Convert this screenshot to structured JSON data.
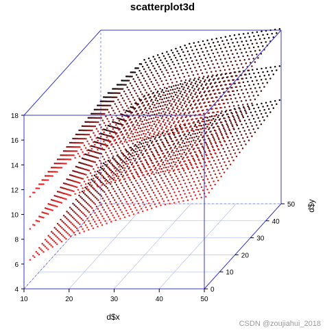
{
  "chart_data": {
    "type": "scatter",
    "title": "scatterplot3d",
    "xlabel": "d$x",
    "ylabel": "d$y",
    "zlabel": "",
    "xlim": [
      10,
      50
    ],
    "ylim": [
      0,
      50
    ],
    "zlim": [
      4,
      18
    ],
    "x_ticks": [
      "10",
      "20",
      "30",
      "40",
      "50"
    ],
    "y_ticks": [
      "0",
      "10",
      "20",
      "30",
      "40",
      "50"
    ],
    "z_ticks": [
      "4",
      "6",
      "8",
      "10",
      "12",
      "14",
      "16",
      "18"
    ],
    "grid": true,
    "box": true,
    "point_color_gradient": [
      "#ff0000",
      "#000000"
    ],
    "box_color": "#3333cc",
    "grid_color": "#aab8ee",
    "surfaces": [
      {
        "x_range": [
          11,
          50
        ],
        "y_range": [
          1,
          50
        ],
        "z_at_x": [
          [
            11,
            6.2
          ],
          [
            20,
            8.1
          ],
          [
            30,
            9.4
          ],
          [
            40,
            10.6
          ],
          [
            50,
            11.3
          ]
        ],
        "z_slope_y": 0.025
      },
      {
        "x_range": [
          11,
          50
        ],
        "y_range": [
          1,
          50
        ],
        "z_at_x": [
          [
            11,
            8.7
          ],
          [
            20,
            11.4
          ],
          [
            30,
            12.6
          ],
          [
            40,
            13.3
          ],
          [
            50,
            13.8
          ]
        ],
        "z_slope_y": 0.03
      },
      {
        "x_range": [
          11,
          50
        ],
        "y_range": [
          1,
          50
        ],
        "z_at_x": [
          [
            11,
            11.3
          ],
          [
            20,
            14.3
          ],
          [
            30,
            15.6
          ],
          [
            40,
            16.3
          ],
          [
            50,
            16.8
          ]
        ],
        "z_slope_y": 0.03
      }
    ]
  },
  "watermark": "CSDN @zoujiahui_2018"
}
